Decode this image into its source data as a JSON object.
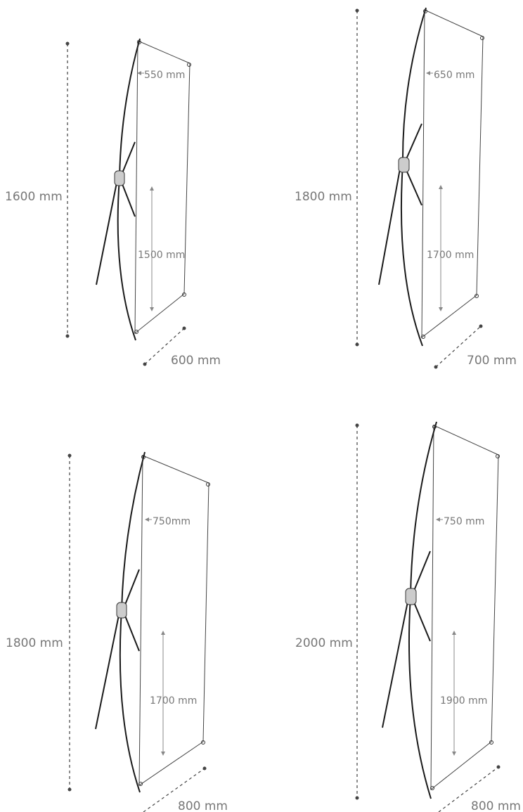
{
  "colors": {
    "frame": "#1a1a1a",
    "dimension": "#777777",
    "hub": "#cccccc"
  },
  "stands": [
    {
      "height": "1600 mm",
      "width": "550 mm",
      "banner_height": "1500 mm",
      "depth": "600 mm"
    },
    {
      "height": "1800 mm",
      "width": "650 mm",
      "banner_height": "1700 mm",
      "depth": "700 mm"
    },
    {
      "height": "1800 mm",
      "width": "750mm",
      "banner_height": "1700 mm",
      "depth": "800 mm"
    },
    {
      "height": "2000 mm",
      "width": "750 mm",
      "banner_height": "1900 mm",
      "depth": "800 mm"
    }
  ]
}
